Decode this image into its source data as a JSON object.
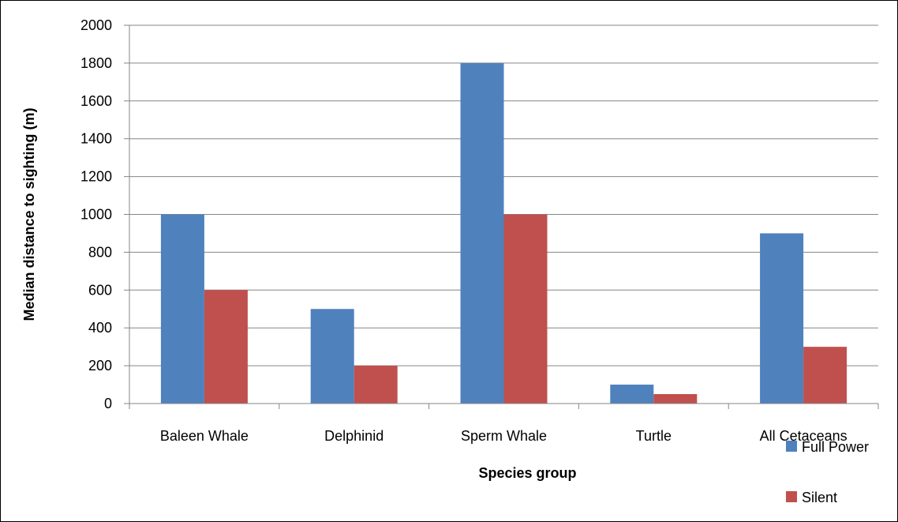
{
  "chart_data": {
    "type": "bar",
    "categories": [
      "Baleen Whale",
      "Delphinid",
      "Sperm Whale",
      "Turtle",
      "All Cetaceans"
    ],
    "series": [
      {
        "name": "Full Power",
        "color": "#4F81BD",
        "values": [
          1000,
          500,
          1800,
          100,
          900
        ]
      },
      {
        "name": "Silent",
        "color": "#C0504D",
        "values": [
          600,
          200,
          1000,
          50,
          300
        ]
      }
    ],
    "xlabel": "Species group",
    "ylabel": "Median distance to sighting (m)",
    "ylim": [
      0,
      2000
    ],
    "yticks": [
      0,
      200,
      400,
      600,
      800,
      1000,
      1200,
      1400,
      1600,
      1800,
      2000
    ],
    "grid": true,
    "legend_position": "bottom-right"
  }
}
